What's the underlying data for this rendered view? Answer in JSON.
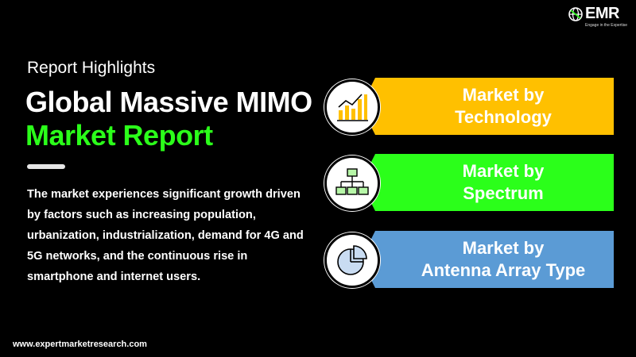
{
  "brand": {
    "logo_text": "EMR",
    "tagline": "Engage in the Expertise",
    "logo_icon": "globe-icon"
  },
  "header": {
    "eyebrow": "Report Highlights",
    "title_line1": "Global Massive MIMO",
    "title_line2": "Market Report"
  },
  "description": "The market experiences significant growth driven by factors such as increasing population, urbanization, industrialization, demand for 4G and 5G networks, and the continuous rise in smartphone and internet users.",
  "segments": [
    {
      "line1": "Market by",
      "line2": "Technology",
      "icon": "bar-chart-icon",
      "color": "#ffc000",
      "text_color": "#ffffff"
    },
    {
      "line1": "Market by",
      "line2": "Spectrum",
      "icon": "hierarchy-icon",
      "color": "#2bff1a",
      "text_color": "#ffffff"
    },
    {
      "line1": "Market by",
      "line2": "Antenna Array Type",
      "icon": "pie-chart-icon",
      "color": "#5b9bd5",
      "text_color": "#ffffff"
    }
  ],
  "footer": {
    "website": "www.expertmarketresearch.com"
  },
  "colors": {
    "accent_green": "#2bff1a",
    "background": "#000000"
  }
}
